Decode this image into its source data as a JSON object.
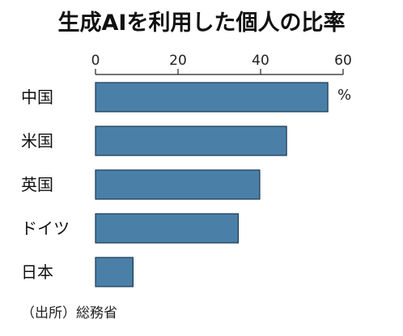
{
  "chart_data": {
    "type": "bar",
    "orientation": "horizontal",
    "title": "生成AIを利用した個人の比率",
    "unit": "%",
    "categories": [
      "中国",
      "米国",
      "英国",
      "ドイツ",
      "日本"
    ],
    "values": [
      56.3,
      46.3,
      39.8,
      34.6,
      9.1
    ],
    "xlim": [
      0,
      60
    ],
    "ticks": [
      0,
      20,
      40,
      60
    ],
    "tick_labels": [
      "0",
      "20",
      "40",
      "60"
    ],
    "source": "（出所）総務省",
    "bar_color": "#4a7fa8",
    "bar_stroke": "#1d3950"
  }
}
